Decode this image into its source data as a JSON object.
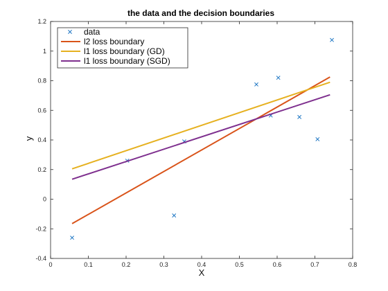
{
  "chart_data": {
    "type": "scatter",
    "title": "the data and the decision boundaries",
    "xlabel": "X",
    "ylabel": "y",
    "xlim": [
      0,
      0.8
    ],
    "ylim": [
      -0.4,
      1.2
    ],
    "xticks": [
      "0",
      "0.1",
      "0.2",
      "0.3",
      "0.4",
      "0.5",
      "0.6",
      "0.7",
      "0.8"
    ],
    "yticks": [
      "-0.4",
      "-0.2",
      "0",
      "0.2",
      "0.4",
      "0.6",
      "0.8",
      "1",
      "1.2"
    ],
    "grid": false,
    "legend_position": "top-left",
    "series": [
      {
        "name": "data",
        "kind": "scatter",
        "marker": "x",
        "color": "#1f77c4",
        "points": [
          [
            0.057,
            -0.26
          ],
          [
            0.203,
            0.26
          ],
          [
            0.327,
            -0.11
          ],
          [
            0.354,
            0.39
          ],
          [
            0.545,
            0.775
          ],
          [
            0.583,
            0.565
          ],
          [
            0.603,
            0.82
          ],
          [
            0.659,
            0.555
          ],
          [
            0.707,
            0.405
          ],
          [
            0.745,
            1.075
          ]
        ]
      },
      {
        "name": "l2 loss boundary",
        "kind": "line",
        "color": "#d95319",
        "points": [
          [
            0.057,
            -0.165
          ],
          [
            0.74,
            0.825
          ]
        ]
      },
      {
        "name": "l1 loss boundary (GD)",
        "kind": "line",
        "color": "#e6b120",
        "points": [
          [
            0.057,
            0.205
          ],
          [
            0.74,
            0.79
          ]
        ]
      },
      {
        "name": "l1 loss boundary (SGD)",
        "kind": "line",
        "color": "#7e2f8e",
        "points": [
          [
            0.057,
            0.135
          ],
          [
            0.74,
            0.705
          ]
        ]
      }
    ]
  }
}
